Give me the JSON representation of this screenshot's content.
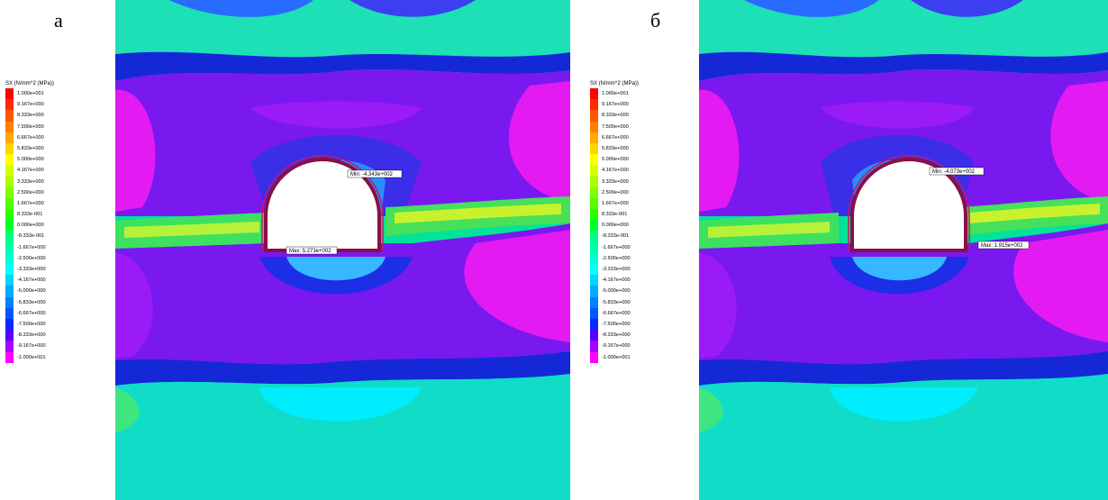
{
  "panels": [
    {
      "letter": "а",
      "legend_title": "SX (N/mm^2 (MPa))",
      "min_tag": "Min: -4.343e+002",
      "max_tag": "Max: 5.273e+002"
    },
    {
      "letter": "б",
      "legend_title": "SX (N/mm^2 (MPa))",
      "min_tag": "Min: -4.073e+002",
      "max_tag": "Max: 1.915e+002"
    }
  ],
  "legend_scale": [
    {
      "label": "1.000e+001",
      "color": "#ff0000"
    },
    {
      "label": "9.167e+000",
      "color": "#ff2a00"
    },
    {
      "label": "8.333e+000",
      "color": "#ff5500"
    },
    {
      "label": "7.500e+000",
      "color": "#ff7f00"
    },
    {
      "label": "6.667e+000",
      "color": "#ffaa00"
    },
    {
      "label": "5.833e+000",
      "color": "#ffd400"
    },
    {
      "label": "5.000e+000",
      "color": "#ffff00"
    },
    {
      "label": "4.167e+000",
      "color": "#d4ff00"
    },
    {
      "label": "3.333e+000",
      "color": "#aaff00"
    },
    {
      "label": "2.500e+000",
      "color": "#7fff00"
    },
    {
      "label": "1.667e+000",
      "color": "#55ff00"
    },
    {
      "label": "8.333e-001",
      "color": "#2aff00"
    },
    {
      "label": "0.000e+000",
      "color": "#00ff2a"
    },
    {
      "label": "-8.333e-001",
      "color": "#00ff7f"
    },
    {
      "label": "-1.667e+000",
      "color": "#00ffaa"
    },
    {
      "label": "-2.500e+000",
      "color": "#00ffd4"
    },
    {
      "label": "-3.333e+000",
      "color": "#00ffff"
    },
    {
      "label": "-4.167e+000",
      "color": "#00d4ff"
    },
    {
      "label": "-5.000e+000",
      "color": "#00aaff"
    },
    {
      "label": "-5.833e+000",
      "color": "#007fff"
    },
    {
      "label": "-6.667e+000",
      "color": "#0055ff"
    },
    {
      "label": "-7.500e+000",
      "color": "#002aff"
    },
    {
      "label": "-8.333e+000",
      "color": "#5500ff"
    },
    {
      "label": "-9.167e+000",
      "color": "#aa00ff"
    },
    {
      "label": "-1.000e+001",
      "color": "#ff00ff"
    }
  ]
}
